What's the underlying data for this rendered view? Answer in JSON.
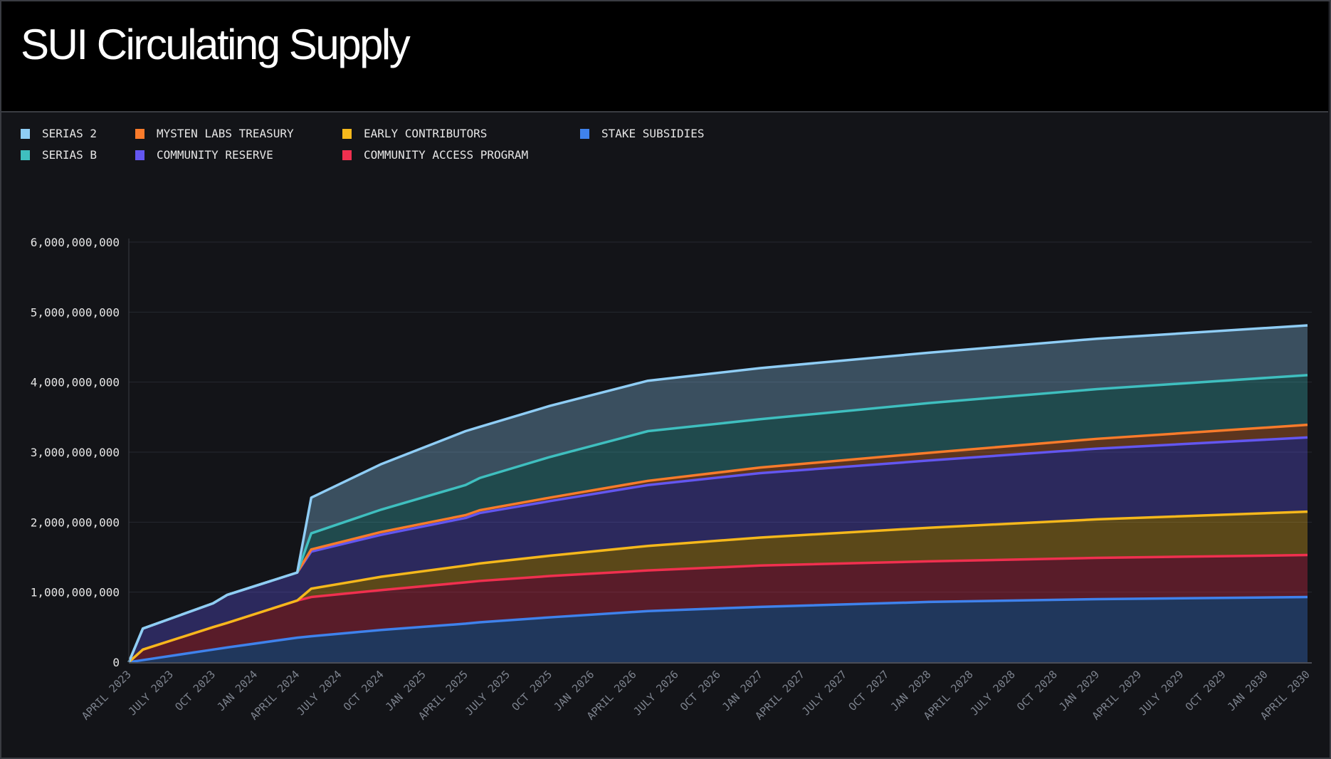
{
  "title": "SUI Circulating Supply",
  "chart_data": {
    "type": "area",
    "stacked": true,
    "title": "SUI Circulating Supply",
    "xlabel": "",
    "ylabel": "",
    "ylim": [
      0,
      6000000000
    ],
    "yticks": [
      "0",
      "1,000,000,000",
      "2,000,000,000",
      "3,000,000,000",
      "4,000,000,000",
      "5,000,000,000",
      "6,000,000,000"
    ],
    "xticks": [
      "APRIL 2023",
      "JULY 2023",
      "OCT 2023",
      "JAN 2024",
      "APRIL 2024",
      "JULY 2024",
      "OCT 2024",
      "JAN 2025",
      "APRIL 2025",
      "JULY 2025",
      "OCT 2025",
      "JAN 2026",
      "APRIL 2026",
      "JULY 2026",
      "OCT 2026",
      "JAN 2027",
      "APRIL 2027",
      "JULY 2027",
      "OCT 2027",
      "JAN 2028",
      "APRIL 2028",
      "JULY 2028",
      "OCT 2028",
      "JAN 2029",
      "APRIL 2029",
      "JULY 2029",
      "OCT 2029",
      "JAN 2030",
      "APRIL 2030"
    ],
    "grid": true,
    "legend_position": "top-left",
    "x": [
      "2023-04",
      "2023-05",
      "2023-10",
      "2023-11",
      "2024-04",
      "2024-05",
      "2024-10",
      "2025-04",
      "2025-05",
      "2025-10",
      "2026-05",
      "2027-01",
      "2028-01",
      "2029-01",
      "2030-04"
    ],
    "series": [
      {
        "name": "STAKE SUBSIDIES",
        "color": "#3f82ec",
        "values": [
          0,
          30000000,
          180000000,
          210000000,
          350000000,
          370000000,
          460000000,
          550000000,
          570000000,
          640000000,
          730000000,
          790000000,
          860000000,
          900000000,
          930000000
        ]
      },
      {
        "name": "COMMUNITY ACCESS PROGRAM",
        "color": "#f0304f",
        "values": [
          0,
          150000000,
          320000000,
          350000000,
          530000000,
          560000000,
          570000000,
          590000000,
          590000000,
          590000000,
          580000000,
          590000000,
          580000000,
          590000000,
          600000000
        ]
      },
      {
        "name": "EARLY CONTRIBUTORS",
        "color": "#f5b81c",
        "values": [
          0,
          0,
          0,
          0,
          0,
          120000000,
          190000000,
          240000000,
          250000000,
          290000000,
          350000000,
          400000000,
          480000000,
          550000000,
          620000000
        ]
      },
      {
        "name": "COMMUNITY RESERVE",
        "color": "#6356f0",
        "values": [
          0,
          300000000,
          340000000,
          400000000,
          400000000,
          530000000,
          600000000,
          680000000,
          720000000,
          780000000,
          870000000,
          920000000,
          960000000,
          1010000000,
          1060000000
        ]
      },
      {
        "name": "MYSTEN LABS TREASURY",
        "color": "#f97b2b",
        "values": [
          0,
          0,
          0,
          0,
          0,
          30000000,
          40000000,
          40000000,
          40000000,
          50000000,
          60000000,
          80000000,
          110000000,
          140000000,
          180000000
        ]
      },
      {
        "name": "SERIAS B",
        "color": "#3fbfbf",
        "values": [
          0,
          0,
          0,
          0,
          0,
          230000000,
          320000000,
          430000000,
          460000000,
          580000000,
          710000000,
          690000000,
          710000000,
          710000000,
          710000000
        ]
      },
      {
        "name": "SERIAS 2",
        "color": "#8fcdf5",
        "values": [
          0,
          0,
          0,
          0,
          0,
          510000000,
          650000000,
          770000000,
          730000000,
          730000000,
          720000000,
          730000000,
          720000000,
          720000000,
          710000000
        ]
      }
    ]
  },
  "legend": [
    {
      "label": "SERIAS 2",
      "color": "#8fcdf5"
    },
    {
      "label": "SERIAS B",
      "color": "#3fbfbf"
    },
    {
      "label": "MYSTEN LABS TREASURY",
      "color": "#f97b2b"
    },
    {
      "label": "COMMUNITY RESERVE",
      "color": "#6356f0"
    },
    {
      "label": "EARLY CONTRIBUTORS",
      "color": "#f5b81c"
    },
    {
      "label": "COMMUNITY ACCESS PROGRAM",
      "color": "#f0304f"
    },
    {
      "label": "STAKE SUBSIDIES",
      "color": "#3f82ec"
    }
  ]
}
